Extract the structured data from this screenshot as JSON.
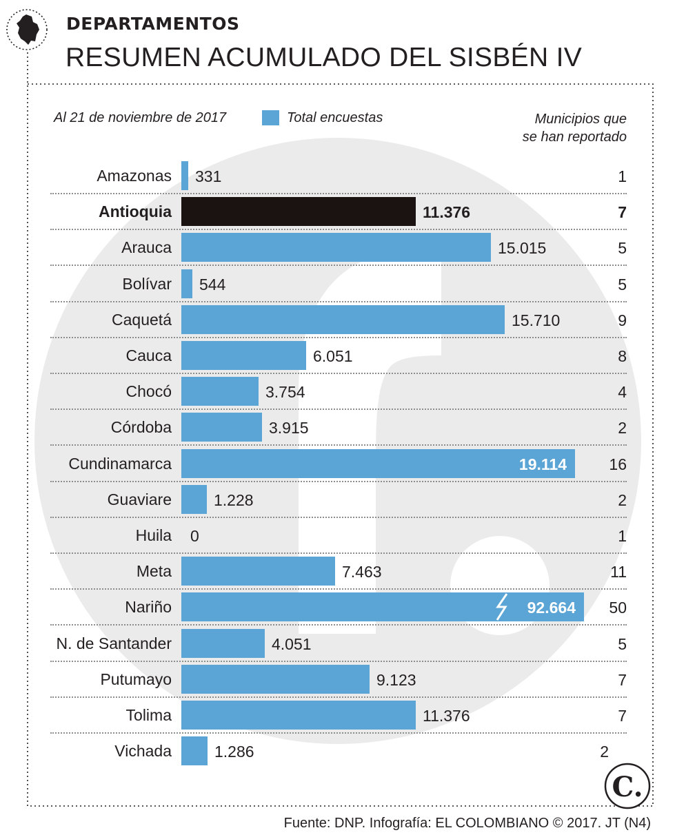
{
  "header": {
    "kicker": "DEPARTAMENTOS",
    "title": "RESUMEN ACUMULADO DEL SISBÉN IV"
  },
  "legend": {
    "date": "Al 21 de noviembre de 2017",
    "series": "Total encuestas",
    "municipios_line1": "Municipios que",
    "municipios_line2": "se han reportado"
  },
  "colors": {
    "bar": "#5aa4d6",
    "highlight": "#1a1311",
    "watermark": "#ebebeb"
  },
  "chart_data": {
    "type": "bar",
    "orientation": "horizontal",
    "title": "RESUMEN ACUMULADO DEL SISBÉN IV",
    "value_scale_max": 19114,
    "series": [
      {
        "name": "Total encuestas",
        "values": [
          331,
          11376,
          15015,
          544,
          15710,
          6051,
          3754,
          3915,
          19114,
          1228,
          0,
          7463,
          92664,
          4051,
          9123,
          11376,
          1286
        ]
      },
      {
        "name": "Municipios que se han reportado",
        "values": [
          1,
          7,
          5,
          5,
          9,
          8,
          4,
          2,
          16,
          2,
          1,
          11,
          50,
          5,
          7,
          7,
          2
        ]
      }
    ],
    "rows": [
      {
        "label": "Amazonas",
        "value": 331,
        "value_label": "331",
        "municipios": "1"
      },
      {
        "label": "Antioquia",
        "value": 11376,
        "value_label": "11.376",
        "municipios": "7",
        "highlight": true
      },
      {
        "label": "Arauca",
        "value": 15015,
        "value_label": "15.015",
        "municipios": "5"
      },
      {
        "label": "Bolívar",
        "value": 544,
        "value_label": "544",
        "municipios": "5"
      },
      {
        "label": "Caquetá",
        "value": 15710,
        "value_label": "15.710",
        "municipios": "9"
      },
      {
        "label": "Cauca",
        "value": 6051,
        "value_label": "6.051",
        "municipios": "8"
      },
      {
        "label": "Chocó",
        "value": 3754,
        "value_label": "3.754",
        "municipios": "4"
      },
      {
        "label": "Córdoba",
        "value": 3915,
        "value_label": "3.915",
        "municipios": "2"
      },
      {
        "label": "Cundinamarca",
        "value": 19114,
        "value_label": "19.114",
        "municipios": "16",
        "label_inside": true
      },
      {
        "label": "Guaviare",
        "value": 1228,
        "value_label": "1.228",
        "municipios": "2"
      },
      {
        "label": "Huila",
        "value": 0,
        "value_label": "0",
        "municipios": "1"
      },
      {
        "label": "Meta",
        "value": 7463,
        "value_label": "7.463",
        "municipios": "11"
      },
      {
        "label": "Nariño",
        "value": 92664,
        "value_label": "92.664",
        "municipios": "50",
        "label_inside": true,
        "broken_axis": true
      },
      {
        "label": "N. de Santander",
        "value": 4051,
        "value_label": "4.051",
        "municipios": "5"
      },
      {
        "label": "Putumayo",
        "value": 9123,
        "value_label": "9.123",
        "municipios": "7"
      },
      {
        "label": "Tolima",
        "value": 11376,
        "value_label": "11.376",
        "municipios": "7"
      },
      {
        "label": "Vichada",
        "value": 1286,
        "value_label": "1.286",
        "municipios": "2"
      }
    ]
  },
  "footer": {
    "source": "Fuente: DNP. Infografía: EL COLOMBIANO © 2017. JT (N4)"
  },
  "logo": {
    "glyph": "C."
  }
}
